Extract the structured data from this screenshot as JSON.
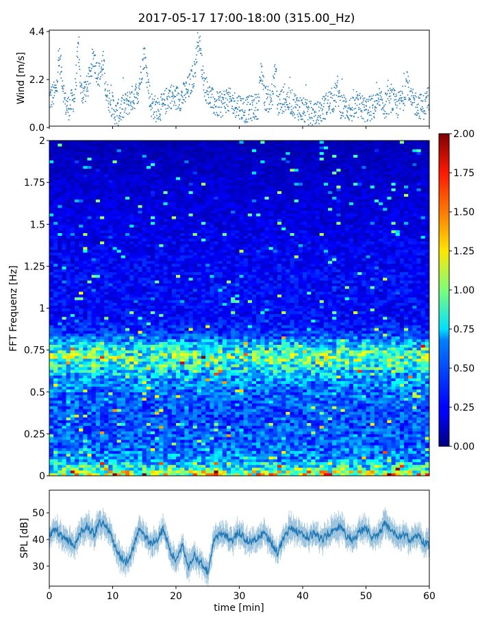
{
  "title": "2017-05-17 17:00-18:00 (315.00_Hz)",
  "chart_data": [
    {
      "type": "scatter",
      "panel": "wind",
      "ylabel": "Wind [m/s]",
      "ylim": [
        0,
        4.4
      ],
      "xlim": [
        0,
        60
      ],
      "yticks": [
        0.0,
        2.2,
        4.4
      ],
      "ytick_labels": [
        "0.0",
        "2.2",
        "4.4"
      ],
      "color": "#1f77b4",
      "series": [
        {
          "x": [
            0.0,
            1.0,
            1.6,
            2.0,
            2.5,
            3.0,
            4.0,
            4.6,
            5.0,
            6.0,
            7.0,
            7.5,
            8.0,
            8.5,
            9.0,
            10.0,
            10.5,
            11.0,
            12.0,
            13.0,
            14.0,
            15.0,
            16.0,
            17.0,
            18.0,
            19.0,
            20.0,
            21.0,
            22.0,
            23.0,
            23.6,
            24.0,
            24.5,
            25.0,
            26.0,
            27.0,
            28.0,
            29.0,
            30.0,
            31.0,
            32.0,
            33.0,
            33.5,
            34.0,
            35.0,
            35.8,
            36.0,
            37.0,
            38.0,
            39.0,
            40.0,
            40.6,
            41.0,
            42.0,
            43.0,
            44.0,
            45.0,
            45.5,
            46.0,
            47.0,
            48.0,
            49.0,
            50.0,
            51.0,
            52.0,
            53.0,
            54.0,
            55.0,
            56.0,
            56.5,
            57.0,
            58.0,
            59.0,
            60.0
          ],
          "y": [
            1.3,
            1.6,
            3.2,
            2.4,
            1.1,
            0.9,
            1.4,
            3.7,
            1.6,
            1.8,
            3.3,
            2.6,
            2.4,
            3.0,
            1.6,
            1.0,
            0.6,
            0.7,
            1.0,
            1.3,
            1.6,
            3.4,
            1.1,
            0.8,
            1.0,
            1.5,
            1.3,
            1.4,
            1.8,
            2.6,
            4.4,
            3.0,
            2.0,
            1.6,
            1.1,
            1.0,
            1.3,
            1.1,
            1.0,
            0.8,
            0.9,
            1.0,
            2.8,
            1.4,
            1.2,
            2.7,
            1.0,
            1.3,
            1.2,
            1.0,
            0.8,
            0.7,
            0.6,
            0.5,
            0.8,
            1.1,
            1.3,
            1.8,
            1.0,
            0.9,
            0.8,
            1.0,
            0.8,
            0.9,
            1.1,
            1.0,
            1.3,
            1.0,
            1.4,
            2.3,
            1.2,
            1.1,
            0.9,
            1.4
          ]
        }
      ]
    },
    {
      "type": "heatmap",
      "panel": "spectrogram",
      "ylabel": "FFT Frequenz [Hz]",
      "xlim": [
        0,
        60
      ],
      "ylim": [
        0,
        2
      ],
      "yticks": [
        0,
        0.25,
        0.5,
        0.75,
        1,
        1.25,
        1.5,
        1.75,
        2
      ],
      "ytick_labels": [
        "0",
        "0.25",
        "0.5",
        "0.75",
        "1",
        "1.25",
        "1.5",
        "1.75",
        "2"
      ],
      "colormap": "jet",
      "color_range": [
        0.0,
        2.0
      ],
      "colorbar_ticks": [
        "0.00",
        "0.25",
        "0.50",
        "0.75",
        "1.00",
        "1.25",
        "1.50",
        "1.75",
        "2.00"
      ],
      "mean_intensity_profile": {
        "freq_hz": [
          0.0,
          0.04,
          0.1,
          0.2,
          0.35,
          0.5,
          0.6,
          0.65,
          0.7,
          0.75,
          0.8,
          0.85,
          0.95,
          1.2,
          1.5,
          1.8,
          2.0
        ],
        "value": [
          1.3,
          0.9,
          0.55,
          0.45,
          0.4,
          0.45,
          0.6,
          0.8,
          0.95,
          0.85,
          0.6,
          0.35,
          0.25,
          0.25,
          0.2,
          0.15,
          0.1
        ]
      }
    },
    {
      "type": "line",
      "panel": "spl",
      "ylabel": "SPL [dB]",
      "xlabel": "time [min]",
      "xlim": [
        0,
        60
      ],
      "ylim": [
        22.5,
        58.5
      ],
      "yticks": [
        30,
        40,
        50
      ],
      "ytick_labels": [
        "30",
        "40",
        "50"
      ],
      "xticks": [
        0,
        10,
        20,
        30,
        40,
        50,
        60
      ],
      "xtick_labels": [
        "0",
        "10",
        "20",
        "30",
        "40",
        "50",
        "60"
      ],
      "color": "#1f77b4",
      "series": [
        {
          "x": [
            0,
            1,
            2,
            3,
            4,
            5,
            6,
            7,
            8,
            9,
            10,
            11,
            12,
            13,
            14,
            15,
            16,
            17,
            18,
            19,
            20,
            21,
            22,
            23,
            24,
            25,
            26,
            27,
            28,
            29,
            30,
            31,
            32,
            33,
            34,
            35,
            36,
            37,
            38,
            39,
            40,
            41,
            42,
            43,
            44,
            45,
            46,
            47,
            48,
            49,
            50,
            51,
            52,
            53,
            54,
            55,
            56,
            57,
            58,
            59,
            60
          ],
          "y": [
            42,
            44,
            41,
            40,
            38,
            43,
            45,
            42,
            47,
            45,
            40,
            34,
            31,
            35,
            43,
            42,
            38,
            40,
            44,
            36,
            32,
            38,
            30,
            34,
            31,
            28,
            40,
            42,
            41,
            40,
            43,
            40,
            39,
            41,
            42,
            39,
            35,
            40,
            44,
            43,
            42,
            41,
            43,
            40,
            42,
            44,
            45,
            41,
            40,
            43,
            44,
            41,
            42,
            46,
            43,
            41,
            42,
            40,
            42,
            39,
            38
          ],
          "spread": [
            4,
            4,
            4,
            4,
            4,
            4,
            5,
            4,
            5,
            4,
            4,
            4,
            4,
            4,
            4,
            4,
            4,
            4,
            4,
            4,
            4,
            4,
            5,
            4,
            4,
            4,
            4,
            4,
            4,
            4,
            4,
            4,
            4,
            4,
            4,
            4,
            4,
            4,
            5,
            4,
            4,
            4,
            4,
            4,
            4,
            5,
            5,
            4,
            4,
            4,
            4,
            4,
            4,
            5,
            4,
            4,
            4,
            4,
            4,
            4,
            4
          ]
        }
      ]
    }
  ]
}
